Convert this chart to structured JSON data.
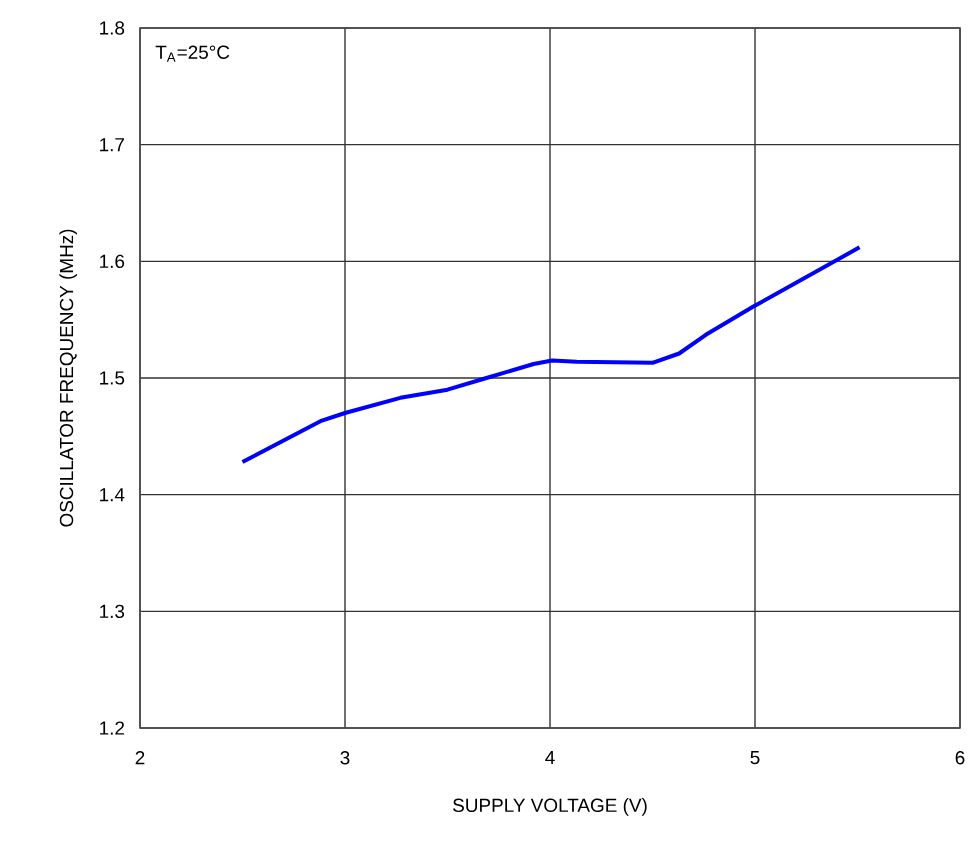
{
  "chart_data": {
    "type": "line",
    "xlabel": "SUPPLY VOLTAGE (V)",
    "ylabel": "OSCILLATOR FREQUENCY (MHz)",
    "annotations": [
      "T$_{A}$=25°C"
    ],
    "xlim": [
      2,
      6
    ],
    "xticks": [
      2,
      3,
      4,
      5,
      6
    ],
    "ylim": [
      1.2,
      1.8
    ],
    "yticks": [
      1.2,
      1.3,
      1.4,
      1.5,
      1.6,
      1.7,
      1.8
    ],
    "grid": true,
    "series": [
      {
        "color": "#0000ff",
        "x": [
          2.5,
          2.88,
          3.0,
          3.27,
          3.5,
          3.69,
          3.92,
          4.01,
          4.13,
          4.5,
          4.63,
          4.76,
          4.99,
          5.51
        ],
        "values": [
          1.428,
          1.463,
          1.47,
          1.483,
          1.49,
          1.5,
          1.512,
          1.515,
          1.514,
          1.513,
          1.521,
          1.537,
          1.561,
          1.612
        ]
      }
    ]
  }
}
